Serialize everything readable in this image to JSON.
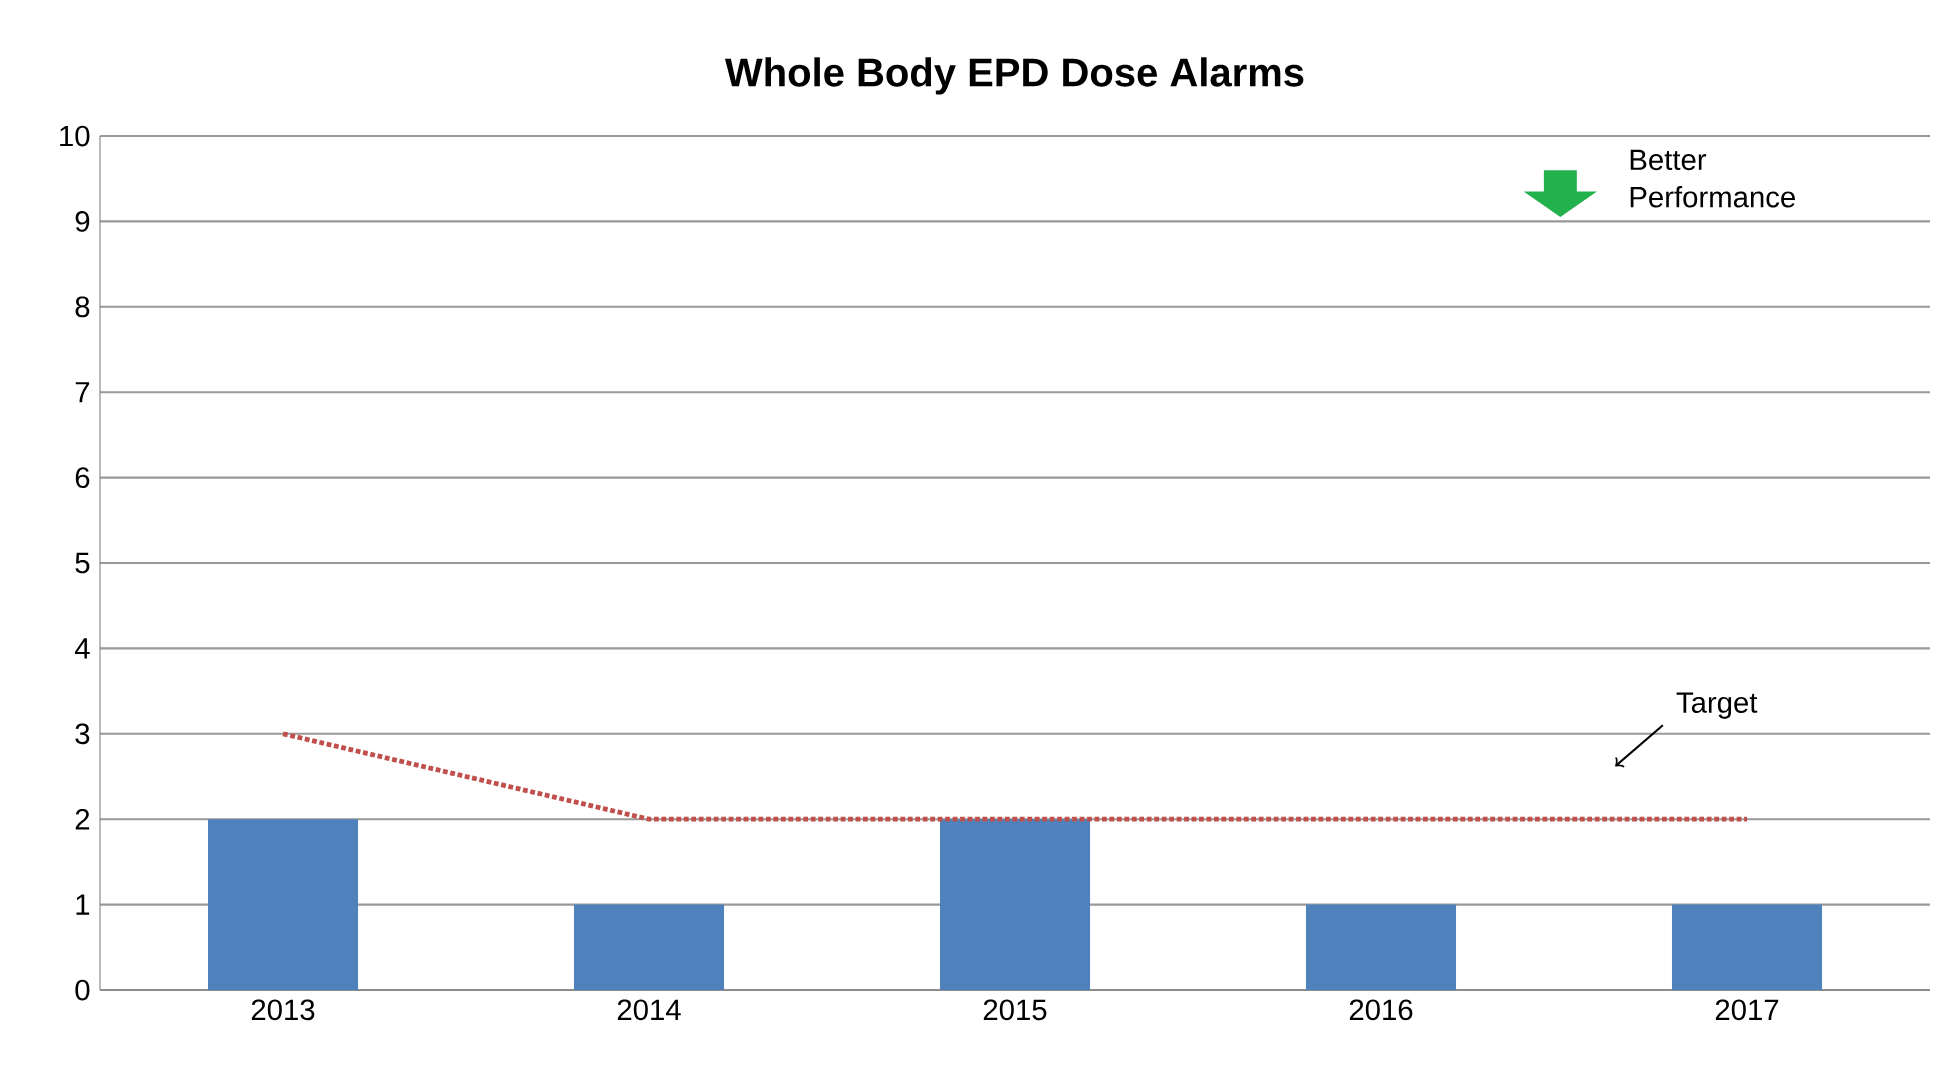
{
  "chart_data": {
    "type": "bar",
    "title": "Whole Body EPD Dose Alarms",
    "categories": [
      "2013",
      "2014",
      "2015",
      "2016",
      "2017"
    ],
    "series": [
      {
        "color": "#4f81bd",
        "values": [
          2,
          1,
          2,
          1,
          1
        ]
      },
      {
        "type": "line",
        "name": "Target",
        "color": "#c0504d",
        "line_style": "dotted",
        "values": [
          3,
          2,
          2,
          2,
          2
        ]
      }
    ],
    "ylim": [
      0,
      10
    ],
    "yticks": [
      0,
      1,
      2,
      3,
      4,
      5,
      6,
      7,
      8,
      9,
      10
    ],
    "grid": "y",
    "annotations": [
      "Better Performance"
    ]
  }
}
